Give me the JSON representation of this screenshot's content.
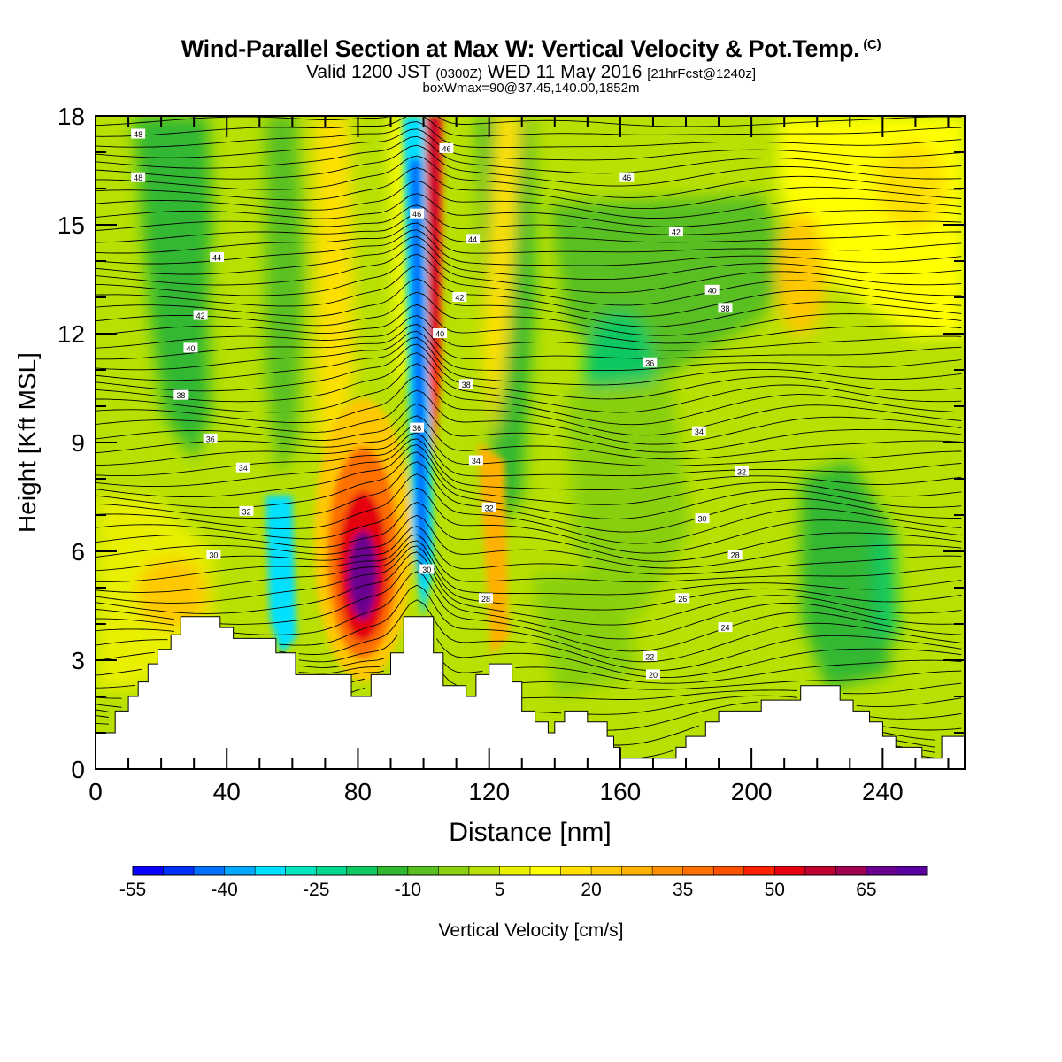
{
  "header": {
    "title": "Wind-Parallel Section at Max W: Vertical Velocity & Pot.Temp.",
    "title_mark": "(C)",
    "valid_prefix": "Valid 1200 JST",
    "valid_z": "(0300Z)",
    "valid_date": "WED 11 May 2016",
    "valid_fcst": "[21hrFcst@1240z]",
    "box_info": "boxWmax=90@37.45,140.00,1852m"
  },
  "chart_data": {
    "type": "heatmap",
    "xlabel": "Distance [nm]",
    "ylabel": "Height [Kft MSL]",
    "xlim": [
      0,
      265
    ],
    "ylim": [
      0,
      18
    ],
    "x_ticks": [
      "0",
      "40",
      "80",
      "120",
      "160",
      "200",
      "240"
    ],
    "y_ticks": [
      "0",
      "3",
      "6",
      "9",
      "12",
      "15",
      "18"
    ],
    "colorbar": {
      "label": "Vertical Velocity [cm/s]",
      "tick_labels": [
        "-55",
        "-40",
        "-25",
        "-10",
        "5",
        "20",
        "35",
        "50",
        "65"
      ],
      "levels_min": -55,
      "levels_step": 5,
      "colors": [
        "#0a00ff",
        "#0030ff",
        "#0070ff",
        "#00a8ff",
        "#00e0ff",
        "#00e6c0",
        "#00d890",
        "#10c860",
        "#30b830",
        "#58c020",
        "#88d010",
        "#b8e000",
        "#e8f000",
        "#ffff00",
        "#ffe000",
        "#ffc800",
        "#ffb000",
        "#ff9000",
        "#ff7000",
        "#ff5000",
        "#ff2000",
        "#e40010",
        "#c00030",
        "#a00050",
        "#6a0090",
        "#5a00a0"
      ]
    },
    "terrain_kft": [
      [
        0,
        1.0
      ],
      [
        6,
        1.0
      ],
      [
        6,
        1.6
      ],
      [
        10,
        1.6
      ],
      [
        10,
        2.0
      ],
      [
        13,
        2.0
      ],
      [
        13,
        2.4
      ],
      [
        16,
        2.4
      ],
      [
        16,
        2.9
      ],
      [
        19,
        2.9
      ],
      [
        19,
        3.3
      ],
      [
        23,
        3.3
      ],
      [
        23,
        3.7
      ],
      [
        26,
        3.7
      ],
      [
        26,
        4.2
      ],
      [
        38,
        4.2
      ],
      [
        38,
        3.9
      ],
      [
        42,
        3.9
      ],
      [
        42,
        3.6
      ],
      [
        46,
        3.6
      ],
      [
        46,
        3.6
      ],
      [
        55,
        3.6
      ],
      [
        55,
        3.2
      ],
      [
        61,
        3.2
      ],
      [
        61,
        2.6
      ],
      [
        78,
        2.6
      ],
      [
        78,
        2.0
      ],
      [
        84,
        2.0
      ],
      [
        84,
        2.6
      ],
      [
        90,
        2.6
      ],
      [
        90,
        3.2
      ],
      [
        94,
        3.2
      ],
      [
        94,
        4.2
      ],
      [
        103,
        4.2
      ],
      [
        103,
        3.2
      ],
      [
        106,
        3.2
      ],
      [
        106,
        2.3
      ],
      [
        113,
        2.3
      ],
      [
        113,
        2.0
      ],
      [
        116,
        2.0
      ],
      [
        116,
        2.6
      ],
      [
        120,
        2.6
      ],
      [
        120,
        2.9
      ],
      [
        127,
        2.9
      ],
      [
        127,
        2.4
      ],
      [
        130,
        2.4
      ],
      [
        130,
        1.6
      ],
      [
        134,
        1.6
      ],
      [
        134,
        1.3
      ],
      [
        138,
        1.3
      ],
      [
        138,
        1.0
      ],
      [
        140,
        1.0
      ],
      [
        140,
        1.3
      ],
      [
        143,
        1.3
      ],
      [
        143,
        1.6
      ],
      [
        150,
        1.6
      ],
      [
        150,
        1.3
      ],
      [
        156,
        1.3
      ],
      [
        156,
        0.9
      ],
      [
        158,
        0.9
      ],
      [
        158,
        0.6
      ],
      [
        160,
        0.6
      ],
      [
        160,
        0.3
      ],
      [
        177,
        0.3
      ],
      [
        177,
        0.6
      ],
      [
        180,
        0.6
      ],
      [
        180,
        0.9
      ],
      [
        186,
        0.9
      ],
      [
        186,
        1.3
      ],
      [
        190,
        1.3
      ],
      [
        190,
        1.6
      ],
      [
        203,
        1.6
      ],
      [
        203,
        1.9
      ],
      [
        215,
        1.9
      ],
      [
        215,
        2.3
      ],
      [
        227,
        2.3
      ],
      [
        227,
        1.9
      ],
      [
        231,
        1.9
      ],
      [
        231,
        1.6
      ],
      [
        236,
        1.6
      ],
      [
        236,
        1.3
      ],
      [
        240,
        1.3
      ],
      [
        240,
        0.9
      ],
      [
        244,
        0.9
      ],
      [
        244,
        0.6
      ],
      [
        252,
        0.6
      ],
      [
        252,
        0.3
      ],
      [
        258,
        0.3
      ],
      [
        258,
        0.9
      ],
      [
        265,
        0.9
      ]
    ],
    "theta_contours": {
      "levels_min": 20,
      "levels_max": 51,
      "label_values": [
        "48",
        "48",
        "46",
        "46",
        "46",
        "44",
        "44",
        "42",
        "42",
        "42",
        "40",
        "40",
        "40",
        "38",
        "38",
        "38",
        "36",
        "36",
        "36",
        "34",
        "34",
        "34",
        "32",
        "32",
        "32",
        "30",
        "30",
        "30",
        "28",
        "28",
        "26",
        "24",
        "22",
        "20"
      ]
    }
  }
}
